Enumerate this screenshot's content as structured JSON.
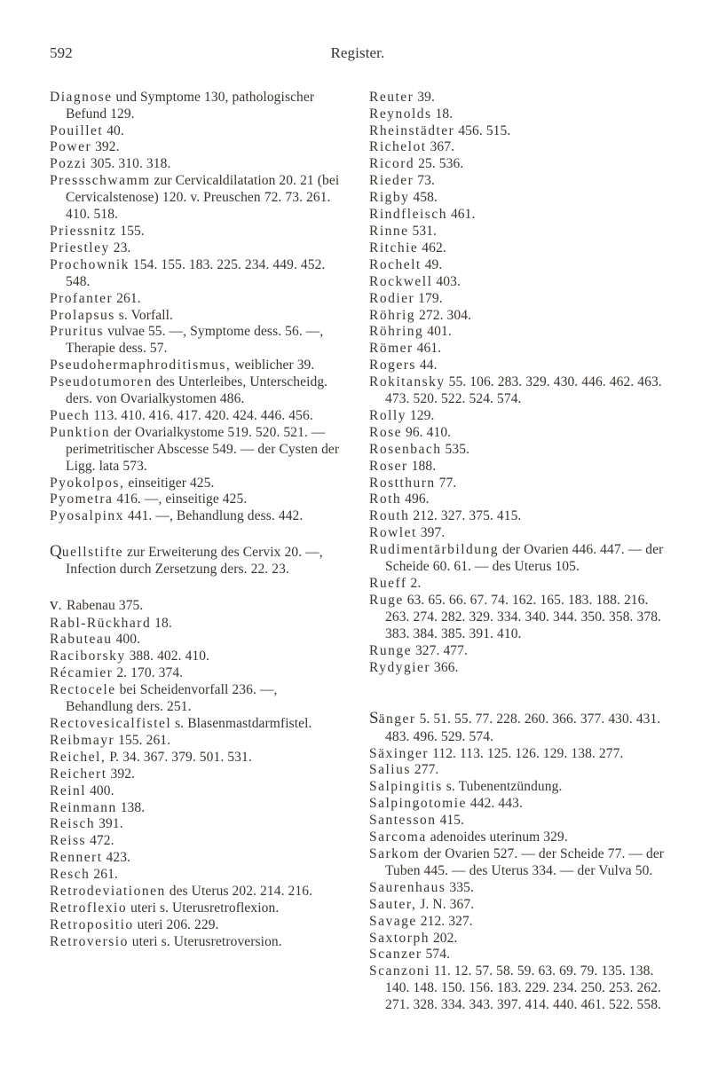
{
  "header": {
    "pageNumber": "592",
    "title": "Register."
  },
  "left": [
    "Diagnose und Symptome 130, pathologischer Befund 129.",
    "Pouillet 40.",
    "Power 392.",
    "Pozzi 305. 310. 318.",
    "Pressschwamm zur Cervicaldilatation 20. 21 (bei Cervicalstenose) 120. v. Preuschen 72. 73. 261. 410. 518.",
    "Priessnitz 155.",
    "Priestley 23.",
    "Prochownik 154. 155. 183. 225. 234. 449. 452. 548.",
    "Profanter 261.",
    "Prolapsus s. Vorfall.",
    "Pruritus vulvae 55. —, Symptome dess. 56. —, Therapie dess. 57.",
    "Pseudohermaphroditismus, weiblicher 39.",
    "Pseudotumoren des Unterleibes, Unterscheidg. ders. von Ovarialkystomen 486.",
    "Puech 113. 410. 416. 417. 420. 424. 446. 456.",
    "Punktion der Ovarialkystome 519. 520. 521. — perimetritischer Abscesse 549. — der Cysten der Ligg. lata 573.",
    "Pyokolpos, einseitiger 425.",
    "Pyometra 416. —, einseitige 425.",
    "Pyosalpinx 441. —, Behandlung dess. 442.",
    "__GAP__",
    "__Q__Quellstifte zur Erweiterung des Cervix 20. —, Infection durch Zersetzung ders. 22. 23.",
    "__GAP__",
    "__R__v. Rabenau 375.",
    "Rabl-Rückhard 18.",
    "Rabuteau 400.",
    "Raciborsky 388. 402. 410.",
    "Récamier 2. 170. 374.",
    "Rectocele bei Scheidenvorfall 236. —, Behandlung ders. 251.",
    "Rectovesicalfistel s. Blasenmastdarmfistel.",
    "Reibmayr 155. 261.",
    "Reichel, P. 34. 367. 379. 501. 531.",
    "Reichert 392.",
    "Reinl 400.",
    "Reinmann 138.",
    "Reisch 391.",
    "Reiss 472.",
    "Rennert 423.",
    "Resch 261.",
    "Retrodeviationen des Uterus 202. 214. 216.",
    "Retroflexio uteri s. Uterusretroflexion.",
    "Retropositio uteri 206. 229.",
    "Retroversio uteri s. Uterusretroversion."
  ],
  "right": [
    "Reuter 39.",
    "Reynolds 18.",
    "Rheinstädter 456. 515.",
    "Richelot 367.",
    "Ricord 25. 536.",
    "Rieder 73.",
    "Rigby 458.",
    "Rindfleisch 461.",
    "Rinne 531.",
    "Ritchie 462.",
    "Rochelt 49.",
    "Rockwell 403.",
    "Rodier 179.",
    "Röhrig 272. 304.",
    "Röhring 401.",
    "Römer 461.",
    "Rogers 44.",
    "Rokitansky 55. 106. 283. 329. 430. 446. 462. 463. 473. 520. 522. 524. 574.",
    "Rolly 129.",
    "Rose 96. 410.",
    "Rosenbach 535.",
    "Roser 188.",
    "Rostthurn 77.",
    "Roth 496.",
    "Routh 212. 327. 375. 415.",
    "Rowlet 397.",
    "Rudimentärbildung der Ovarien 446. 447. — der Scheide 60. 61. — des Uterus 105.",
    "Rueff 2.",
    "Ruge 63. 65. 66. 67. 74. 162. 165. 183. 188. 216. 263. 274. 282. 329. 334. 340. 344. 350. 358. 378. 383. 384. 385. 391. 410.",
    "Runge 327. 477.",
    "Rydygier 366.",
    "__GAP__",
    "__GAP__",
    "__S__Sänger 5. 51. 55. 77. 228. 260. 366. 377. 430. 431. 483. 496. 529. 574.",
    "Säxinger 112. 113. 125. 126. 129. 138. 277.",
    "Salius 277.",
    "Salpingitis s. Tubenentzündung.",
    "Salpingotomie 442. 443.",
    "Santesson 415.",
    "Sarcoma adenoides uterinum 329.",
    "Sarkom der Ovarien 527. — der Scheide 77. — der Tuben 445. — des Uterus 334. — der Vulva 50.",
    "Saurenhaus 335.",
    "Sauter, J. N. 367.",
    "Savage 212. 327.",
    "Saxtorph 202.",
    "Scanzer 574.",
    "Scanzoni 11. 12. 57. 58. 59. 63. 69. 79. 135. 138. 140. 148. 150. 156. 183. 229. 234. 250. 253. 262. 271. 328. 334. 343. 397. 414. 440. 461. 522. 558."
  ]
}
